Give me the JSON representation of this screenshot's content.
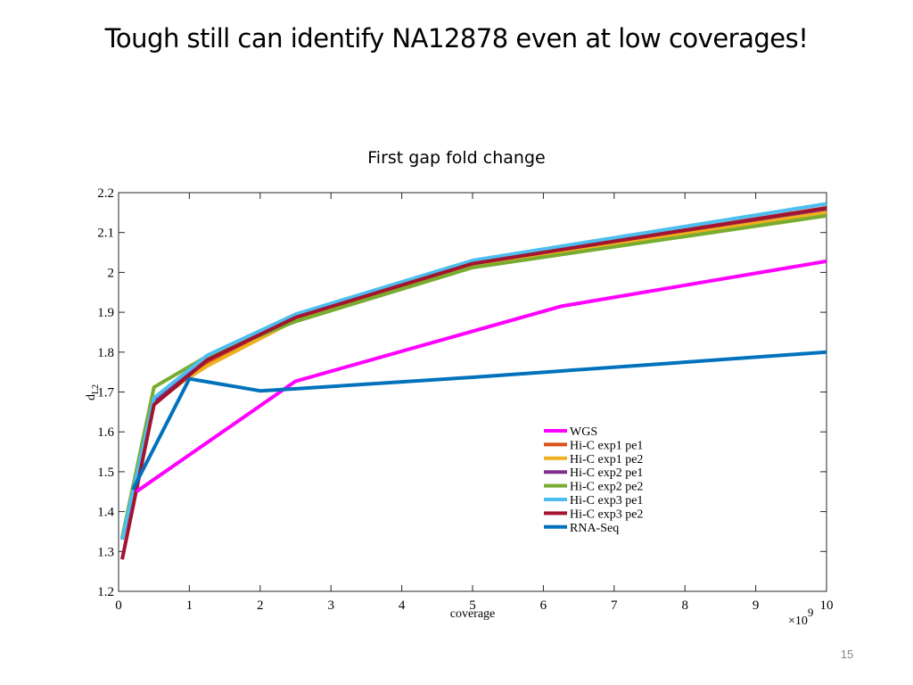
{
  "slide": {
    "title": "Tough still can identify NA12878 even at low coverages!",
    "page_number": "15"
  },
  "chart_data": {
    "type": "line",
    "title": "First gap fold change",
    "xlabel": "coverage",
    "ylabel": "d",
    "ylabel_subscript": "L2",
    "x_multiplier": "×10",
    "x_multiplier_exp": "9",
    "xlim": [
      0,
      10
    ],
    "ylim": [
      1.2,
      2.2
    ],
    "xticks": [
      0,
      1,
      2,
      3,
      4,
      5,
      6,
      7,
      8,
      9,
      10
    ],
    "yticks": [
      1.2,
      1.3,
      1.4,
      1.5,
      1.6,
      1.7,
      1.8,
      1.9,
      2,
      2.1,
      2.2
    ],
    "grid": false,
    "legend_position": "lower-right",
    "series": [
      {
        "name": "WGS",
        "color": "#ff00ff",
        "x": [
          0.25,
          2.5,
          6.25,
          10
        ],
        "y": [
          1.45,
          1.727,
          1.915,
          2.028
        ]
      },
      {
        "name": "Hi-C exp1 pe1",
        "color": "#d95319",
        "x": [
          0.05,
          0.5,
          1.25,
          2.5,
          5,
          10
        ],
        "y": [
          1.33,
          1.67,
          1.775,
          1.885,
          2.02,
          2.155
        ]
      },
      {
        "name": "Hi-C exp1 pe2",
        "color": "#edb120",
        "x": [
          0.05,
          0.5,
          1.25,
          2.5,
          5,
          10
        ],
        "y": [
          1.33,
          1.68,
          1.765,
          1.88,
          2.015,
          2.15
        ]
      },
      {
        "name": "Hi-C exp2 pe1",
        "color": "#7e2f8e",
        "x": [
          0.05,
          0.5,
          1.25,
          2.5,
          5,
          10
        ],
        "y": [
          1.33,
          1.675,
          1.78,
          1.89,
          2.025,
          2.16
        ]
      },
      {
        "name": "Hi-C exp2 pe2",
        "color": "#77ac30",
        "x": [
          0.05,
          0.5,
          1.25,
          2.5,
          5,
          10
        ],
        "y": [
          1.335,
          1.712,
          1.79,
          1.877,
          2.012,
          2.142
        ]
      },
      {
        "name": "Hi-C exp3 pe1",
        "color": "#4dbeee",
        "x": [
          0.05,
          0.5,
          1.25,
          2.5,
          5,
          10
        ],
        "y": [
          1.33,
          1.685,
          1.792,
          1.895,
          2.03,
          2.172
        ]
      },
      {
        "name": "Hi-C exp3 pe2",
        "color": "#a2142f",
        "x": [
          0.05,
          0.5,
          1.25,
          2.5,
          5,
          10
        ],
        "y": [
          1.28,
          1.668,
          1.78,
          1.887,
          2.022,
          2.162
        ]
      },
      {
        "name": "RNA-Seq",
        "color": "#0072bd",
        "x": [
          0.2,
          1,
          2,
          2.5,
          5,
          10
        ],
        "y": [
          1.455,
          1.733,
          1.703,
          1.708,
          1.737,
          1.8
        ]
      }
    ]
  }
}
